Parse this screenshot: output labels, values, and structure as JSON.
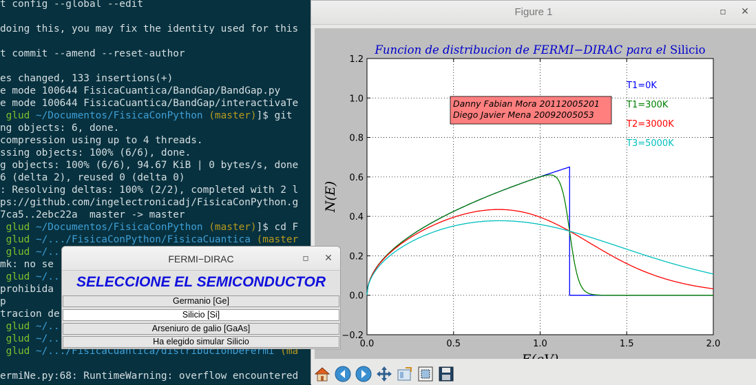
{
  "terminal": {
    "lines": [
      {
        "t": "t config --global --edit"
      },
      {
        "t": ""
      },
      {
        "t": "doing this, you may fix the identity used for this"
      },
      {
        "t": ""
      },
      {
        "t": "t commit --amend --reset-author"
      },
      {
        "t": ""
      },
      {
        "t": "es changed, 133 insertions(+)"
      },
      {
        "t": "e mode 100644 FisicaCuantica/BandGap/BandGap.py"
      },
      {
        "t": "e mode 100644 FisicaCuantica/BandGap/interactivaTe"
      },
      {
        "p": [
          " glud ",
          "~/Documentos/FisicaConPython ",
          "(master)",
          "]$ git "
        ]
      },
      {
        "t": "ng objects: 6, done."
      },
      {
        "t": "compression using up to 4 threads."
      },
      {
        "t": "ssing objects: 100% (6/6), done."
      },
      {
        "t": "g objects: 100% (6/6), 94.67 KiB | 0 bytes/s, done"
      },
      {
        "t": "6 (delta 2), reused 0 (delta 0)"
      },
      {
        "t": ": Resolving deltas: 100% (2/2), completed with 2 l"
      },
      {
        "t": "ps://github.com/ingelectronicadj/FisicaConPython.g"
      },
      {
        "t": "7ca5..2ebc22a  master -> master"
      },
      {
        "p": [
          " glud ",
          "~/Documentos/FisicaConPython ",
          "(master)",
          "]$ cd F"
        ]
      },
      {
        "p": [
          " glud ",
          "~/.../FisicaConPython/FisicaCuantica ",
          "(master",
          ""
        ]
      },
      {
        "p": [
          " glud ",
          "~/...",
          "",
          ""
        ]
      },
      {
        "t": "mk: no se"
      },
      {
        "p": [
          " glud ",
          "~/...",
          "",
          ""
        ]
      },
      {
        "t": "prohibida"
      },
      {
        "t": "p"
      },
      {
        "t": "tracion de"
      },
      {
        "p": [
          " glud ",
          "~/...",
          "",
          ""
        ]
      },
      {
        "p": [
          " glud ",
          "~/...",
          "",
          ""
        ]
      },
      {
        "p": [
          " glud ",
          "~/.../FisicaCuantica/distribucionDeFermi ",
          "(ma",
          ""
        ]
      },
      {
        "t": ""
      },
      {
        "t": "ermiNe.py:68: RuntimeWarning: overflow encountered"
      }
    ]
  },
  "figure_window": {
    "title": "Figure 1",
    "maximize_icon": "maximize-icon",
    "close_icon": "close-icon",
    "toolbar": [
      "home-icon",
      "back-arrow-icon",
      "forward-arrow-icon",
      "pan-icon",
      "configure-subplots-icon",
      "zoom-rect-icon",
      "save-icon"
    ]
  },
  "chart_data": {
    "type": "line",
    "title_italic": "Funcion de distribucion de FERMI−DIRAC para el",
    "title_upright": "Silicio",
    "xlabel": "E(eV)",
    "ylabel": "N(E)",
    "xlim": [
      0.0,
      2.0
    ],
    "ylim": [
      -0.2,
      1.2
    ],
    "xticks": [
      "0.0",
      "0.5",
      "1.0",
      "1.5",
      "2.0"
    ],
    "yticks": [
      "−0.2",
      "0.0",
      "0.2",
      "0.4",
      "0.6",
      "0.8",
      "1.0",
      "1.2"
    ],
    "grid": true,
    "annotation": {
      "lines": [
        "Danny Fabian Mora 20112005201",
        "Diego Javier Mena 20092005053"
      ],
      "background": "#ff7f7f"
    },
    "series": [
      {
        "name": "T1=0K",
        "color": "#0000ff",
        "temperature_K": 0
      },
      {
        "name": "T1=300K",
        "color": "#008000",
        "temperature_K": 300
      },
      {
        "name": "T2=3000K",
        "color": "#ff0000",
        "temperature_K": 3000
      },
      {
        "name": "T3=5000K",
        "color": "#00bfbf",
        "temperature_K": 5000
      }
    ],
    "band_gap_eV": 1.17,
    "peak_value": 0.65
  },
  "dialog": {
    "title": "FERMI−DIRAC",
    "heading": "SELECCIONE EL SEMICONDUCTOR",
    "options": [
      "Germanio [Ge]",
      "Silicio [Si]",
      "Arseniuro de galio [GaAs]"
    ],
    "selected": "Silicio [Si]",
    "status": "Ha elegido simular Silicio"
  }
}
